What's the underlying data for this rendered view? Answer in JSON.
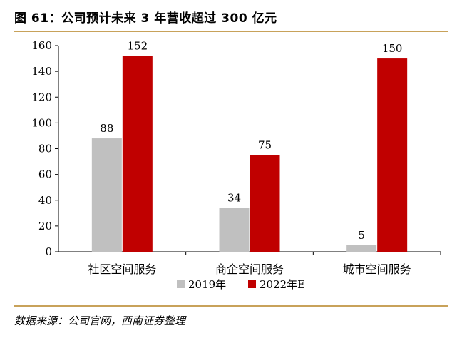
{
  "header": {
    "title": "图 61：公司预计未来 3 年营收超过 300 亿元"
  },
  "footer": {
    "source": "数据来源：公司官网，西南证券整理"
  },
  "colors": {
    "series_2019": "#c0c0c0",
    "series_2022e": "#c00000",
    "accent_rule": "#c8a25a"
  },
  "chart_data": {
    "type": "bar",
    "categories": [
      "社区空间服务",
      "商企空间服务",
      "城市空间服务"
    ],
    "series": [
      {
        "name": "2019年",
        "values": [
          88,
          34,
          5
        ]
      },
      {
        "name": "2022年E",
        "values": [
          152,
          75,
          150
        ]
      }
    ],
    "ylim": [
      0,
      160
    ],
    "yticks": [
      "0",
      "20",
      "40",
      "60",
      "80",
      "100",
      "120",
      "140",
      "160"
    ],
    "legend_position": "bottom",
    "grid": false
  }
}
